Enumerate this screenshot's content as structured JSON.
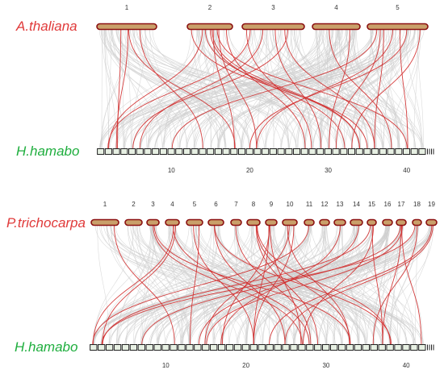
{
  "colors": {
    "top_species": "#e03a3a",
    "hamabo_species": "#1fae3e",
    "chromosome_fill": "#c9a06a",
    "chromosome_outline": "#8b1010",
    "hamabo_outline": "#1f7a30",
    "link_bg": "#cfcfcf",
    "link_highlight": "#d22b2b",
    "hamabo_fill": "#e7f0e3"
  },
  "panels": [
    {
      "top_species": "A.thaliana",
      "bottom_species": "H.hamabo",
      "top_chromosomes": [
        "1",
        "2",
        "3",
        "4",
        "5"
      ],
      "bottom_ticks": [
        "10",
        "20",
        "30",
        "40"
      ],
      "bottom_segment_count": 42
    },
    {
      "top_species": "P.trichocarpa",
      "bottom_species": "H.hamabo",
      "top_chromosomes": [
        "1",
        "2",
        "3",
        "4",
        "5",
        "6",
        "7",
        "8",
        "9",
        "10",
        "11",
        "12",
        "13",
        "14",
        "15",
        "16",
        "17",
        "18",
        "19"
      ],
      "bottom_ticks": [
        "10",
        "20",
        "30",
        "40"
      ],
      "bottom_segment_count": 42
    }
  ]
}
